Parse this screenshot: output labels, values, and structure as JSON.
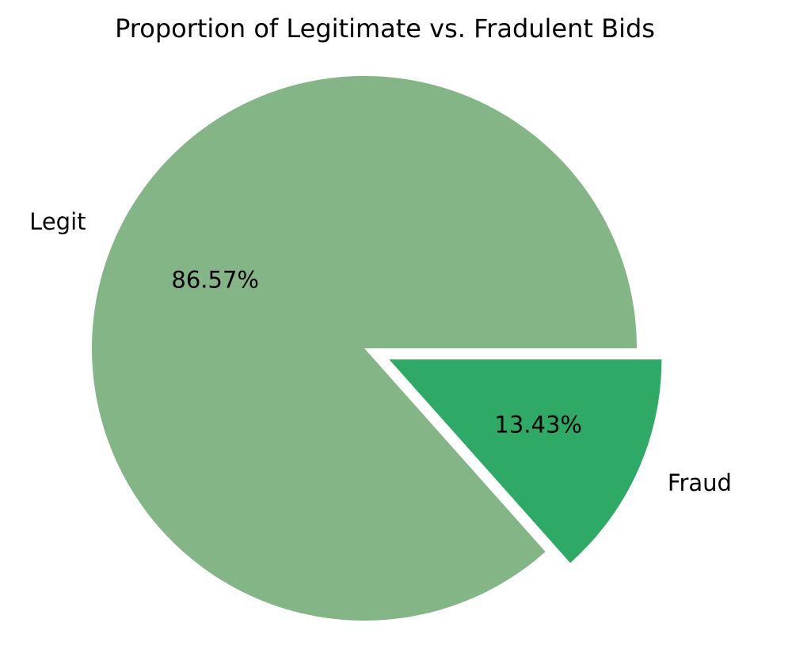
{
  "chart_data": {
    "type": "pie",
    "title": "Proportion of Legitimate vs. Fradulent Bids",
    "slices": [
      {
        "label": "Legit",
        "value": 86.57,
        "pct_label": "86.57%",
        "color": "#84b586",
        "explode": 0
      },
      {
        "label": "Fraud",
        "value": 13.43,
        "pct_label": "13.43%",
        "color": "#2eaa66",
        "explode": 0.1
      }
    ],
    "start_angle_deg": 0,
    "direction": "counterclockwise",
    "legend": "none"
  }
}
